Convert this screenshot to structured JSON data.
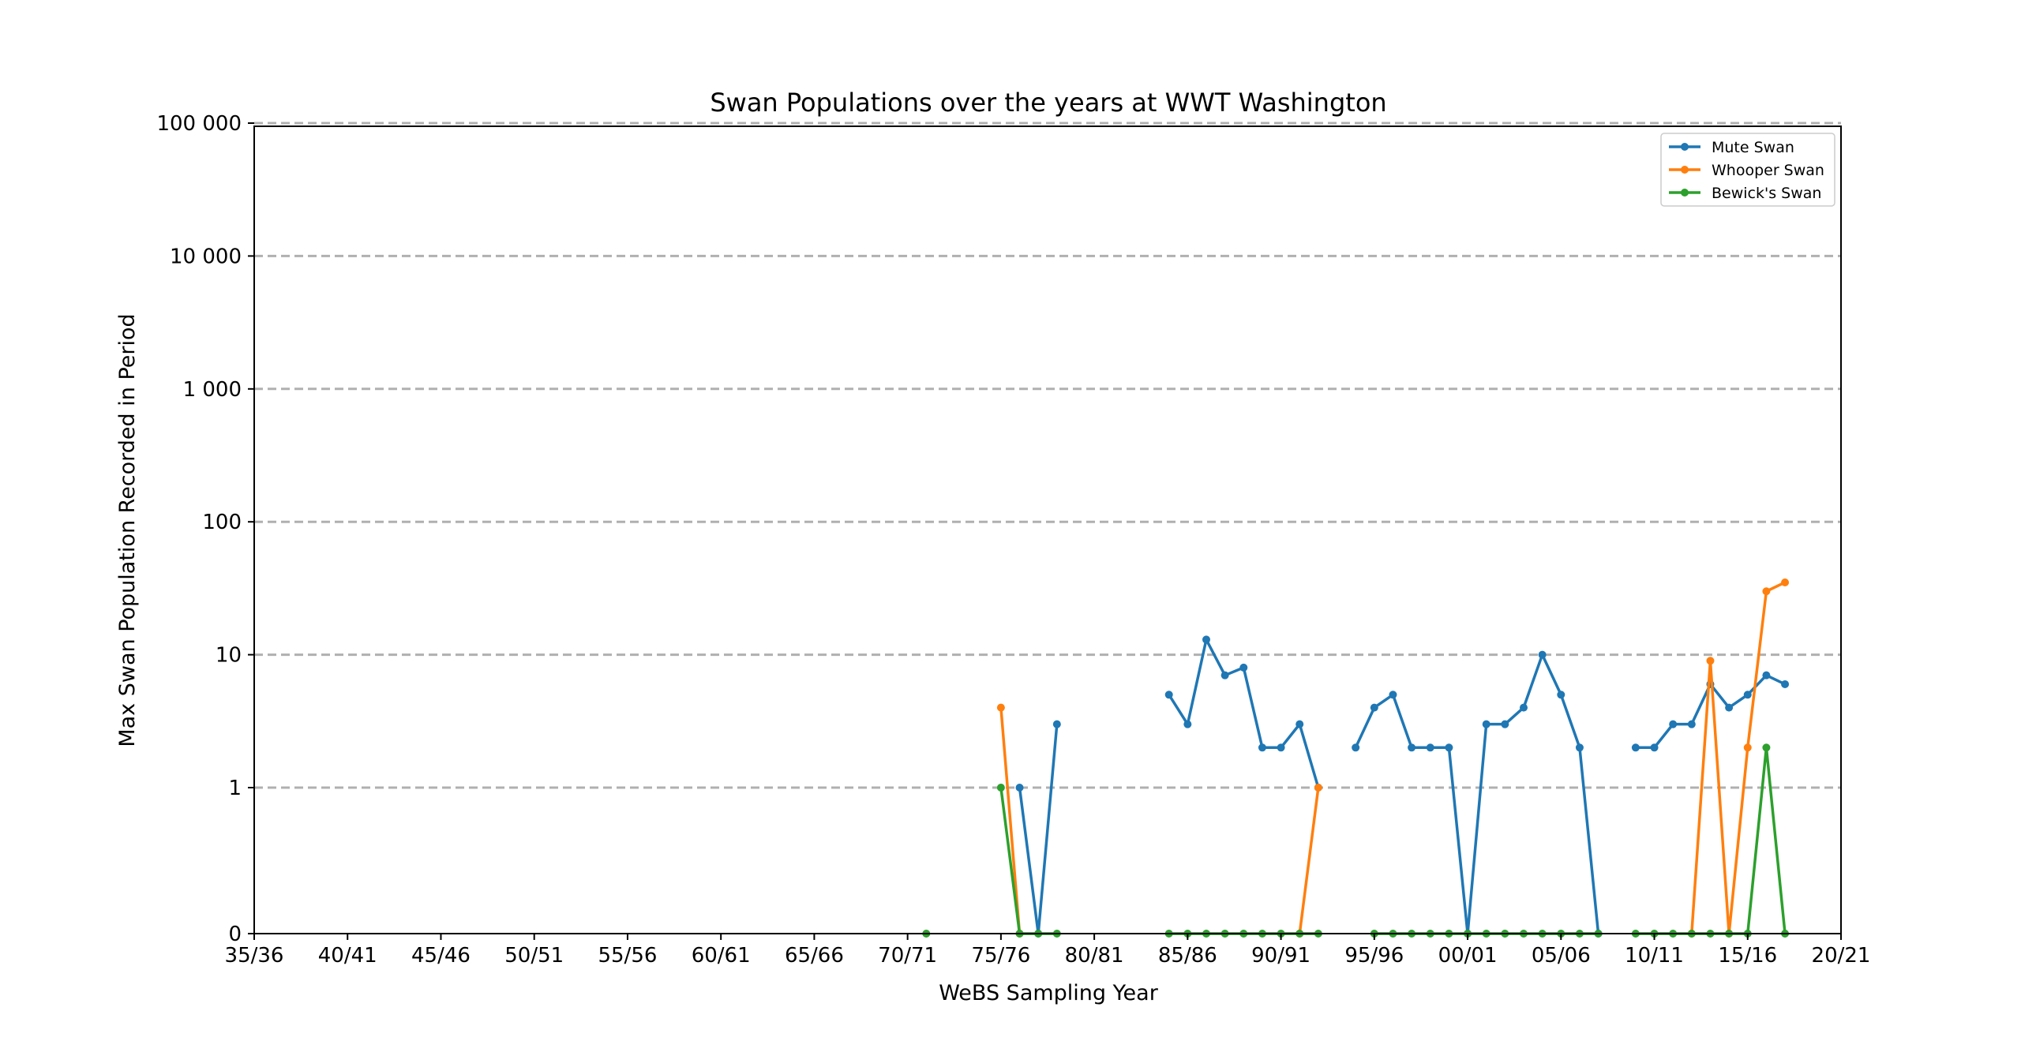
{
  "chart_data": {
    "type": "line",
    "title": "Swan Populations over the years at WWT Washington",
    "xlabel": "WeBS Sampling Year",
    "ylabel": "Max Swan Population Recorded in Period",
    "y_scale": "symlog",
    "ylim": [
      0,
      100000
    ],
    "xlim": [
      1935,
      2020
    ],
    "x_ticks": [
      {
        "x": 1935,
        "label": "35/36"
      },
      {
        "x": 1940,
        "label": "40/41"
      },
      {
        "x": 1945,
        "label": "45/46"
      },
      {
        "x": 1950,
        "label": "50/51"
      },
      {
        "x": 1955,
        "label": "55/56"
      },
      {
        "x": 1960,
        "label": "60/61"
      },
      {
        "x": 1965,
        "label": "65/66"
      },
      {
        "x": 1970,
        "label": "70/71"
      },
      {
        "x": 1975,
        "label": "75/76"
      },
      {
        "x": 1980,
        "label": "80/81"
      },
      {
        "x": 1985,
        "label": "85/86"
      },
      {
        "x": 1990,
        "label": "90/91"
      },
      {
        "x": 1995,
        "label": "95/96"
      },
      {
        "x": 2000,
        "label": "00/01"
      },
      {
        "x": 2005,
        "label": "05/06"
      },
      {
        "x": 2010,
        "label": "10/11"
      },
      {
        "x": 2015,
        "label": "15/16"
      },
      {
        "x": 2020,
        "label": "20/21"
      }
    ],
    "y_ticks": [
      {
        "y": 0,
        "label": "0"
      },
      {
        "y": 1,
        "label": "1"
      },
      {
        "y": 10,
        "label": "10"
      },
      {
        "y": 100,
        "label": "100"
      },
      {
        "y": 1000,
        "label": "1 000"
      },
      {
        "y": 10000,
        "label": "10 000"
      },
      {
        "y": 100000,
        "label": "100 000"
      }
    ],
    "grid": "horizontal dashed",
    "legend_position": "top-right",
    "series": [
      {
        "name": "Mute Swan",
        "color": "#1f77b4",
        "points": [
          [
            1976,
            1
          ],
          [
            1977,
            0
          ],
          [
            1978,
            3
          ],
          null,
          [
            1984,
            5
          ],
          [
            1985,
            3
          ],
          [
            1986,
            13
          ],
          [
            1987,
            7
          ],
          [
            1988,
            8
          ],
          [
            1989,
            2
          ],
          [
            1990,
            2
          ],
          [
            1991,
            3
          ],
          [
            1992,
            1
          ],
          null,
          [
            1994,
            2
          ],
          [
            1995,
            4
          ],
          [
            1996,
            5
          ],
          [
            1997,
            2
          ],
          [
            1998,
            2
          ],
          [
            1999,
            2
          ],
          [
            2000,
            0
          ],
          [
            2001,
            3
          ],
          [
            2002,
            3
          ],
          [
            2003,
            4
          ],
          [
            2004,
            10
          ],
          [
            2005,
            5
          ],
          [
            2006,
            2
          ],
          [
            2007,
            0
          ],
          null,
          [
            2009,
            2
          ],
          [
            2010,
            2
          ],
          [
            2011,
            3
          ],
          [
            2012,
            3
          ],
          [
            2013,
            6
          ],
          [
            2014,
            4
          ],
          [
            2015,
            5
          ],
          [
            2016,
            7
          ],
          [
            2017,
            6
          ]
        ]
      },
      {
        "name": "Whooper Swan",
        "color": "#ff7f0e",
        "points": [
          [
            1975,
            4
          ],
          [
            1976,
            0
          ],
          null,
          [
            1991,
            0
          ],
          [
            1992,
            1
          ],
          null,
          [
            2012,
            0
          ],
          [
            2013,
            9
          ],
          [
            2014,
            0
          ],
          [
            2015,
            2
          ],
          [
            2016,
            30
          ],
          [
            2017,
            35
          ]
        ]
      },
      {
        "name": "Bewick's Swan",
        "color": "#2ca02c",
        "points": [
          [
            1971,
            0
          ],
          null,
          [
            1975,
            1
          ],
          [
            1976,
            0
          ],
          [
            1977,
            0
          ],
          [
            1978,
            0
          ],
          null,
          [
            1984,
            0
          ],
          [
            1985,
            0
          ],
          [
            1986,
            0
          ],
          [
            1987,
            0
          ],
          [
            1988,
            0
          ],
          [
            1989,
            0
          ],
          [
            1990,
            0
          ],
          [
            1991,
            0
          ],
          [
            1992,
            0
          ],
          null,
          [
            1995,
            0
          ],
          [
            1996,
            0
          ],
          [
            1997,
            0
          ],
          [
            1998,
            0
          ],
          [
            1999,
            0
          ],
          [
            2000,
            0
          ],
          [
            2001,
            0
          ],
          [
            2002,
            0
          ],
          [
            2003,
            0
          ],
          [
            2004,
            0
          ],
          [
            2005,
            0
          ],
          [
            2006,
            0
          ],
          [
            2007,
            0
          ],
          null,
          [
            2009,
            0
          ],
          [
            2010,
            0
          ],
          [
            2011,
            0
          ],
          [
            2012,
            0
          ],
          [
            2013,
            0
          ],
          [
            2014,
            0
          ],
          [
            2015,
            0
          ],
          [
            2016,
            2
          ],
          [
            2017,
            0
          ]
        ]
      }
    ]
  }
}
